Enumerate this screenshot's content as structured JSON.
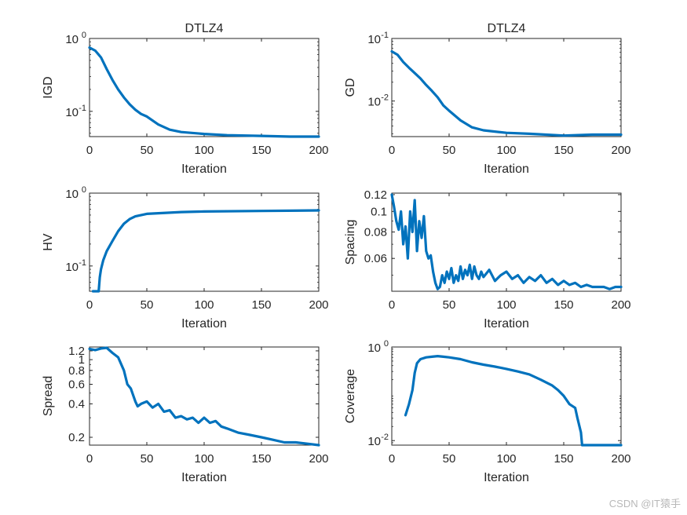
{
  "figure": {
    "line_color": "#0072BD",
    "axis_color": "#262626",
    "background": "#ffffff"
  },
  "watermark": "CSDN @IT猿手",
  "chart_data": [
    {
      "id": "igd",
      "type": "line",
      "title": "DTLZ4",
      "xlabel": "Iteration",
      "ylabel": "IGD",
      "yscale": "log",
      "xlim": [
        0,
        200
      ],
      "ylim": [
        0.045,
        1
      ],
      "xticks": [
        0,
        50,
        100,
        150,
        200
      ],
      "yticks": [
        {
          "v": 1,
          "base": "10",
          "exp": "0"
        },
        {
          "v": 0.1,
          "base": "10",
          "exp": "-1"
        }
      ],
      "series": [
        {
          "name": "IGD",
          "x": [
            0,
            5,
            10,
            15,
            20,
            25,
            30,
            35,
            40,
            45,
            50,
            60,
            70,
            80,
            100,
            120,
            150,
            175,
            200
          ],
          "y": [
            0.75,
            0.68,
            0.55,
            0.38,
            0.27,
            0.2,
            0.155,
            0.125,
            0.105,
            0.092,
            0.085,
            0.066,
            0.056,
            0.052,
            0.049,
            0.047,
            0.046,
            0.045,
            0.045
          ]
        }
      ]
    },
    {
      "id": "gd",
      "type": "line",
      "title": "DTLZ4",
      "xlabel": "Iteration",
      "ylabel": "GD",
      "yscale": "log",
      "xlim": [
        0,
        200
      ],
      "ylim": [
        0.0027,
        0.1
      ],
      "xticks": [
        0,
        50,
        100,
        150,
        200
      ],
      "yticks": [
        {
          "v": 0.1,
          "base": "10",
          "exp": "-1"
        },
        {
          "v": 0.01,
          "base": "10",
          "exp": "-2"
        }
      ],
      "series": [
        {
          "name": "GD",
          "x": [
            0,
            5,
            10,
            15,
            20,
            25,
            30,
            35,
            40,
            45,
            50,
            60,
            70,
            80,
            100,
            120,
            150,
            175,
            200
          ],
          "y": [
            0.062,
            0.055,
            0.042,
            0.034,
            0.028,
            0.023,
            0.018,
            0.0145,
            0.0115,
            0.0085,
            0.007,
            0.0049,
            0.0038,
            0.0034,
            0.0031,
            0.003,
            0.0028,
            0.0029,
            0.0029
          ]
        }
      ]
    },
    {
      "id": "hv",
      "type": "line",
      "title": "",
      "xlabel": "Iteration",
      "ylabel": "HV",
      "yscale": "log",
      "xlim": [
        0,
        200
      ],
      "ylim": [
        0.045,
        1
      ],
      "xticks": [
        0,
        50,
        100,
        150,
        200
      ],
      "yticks": [
        {
          "v": 1,
          "base": "10",
          "exp": "0"
        },
        {
          "v": 0.1,
          "base": "10",
          "exp": "-1"
        }
      ],
      "series": [
        {
          "name": "HV",
          "x": [
            3,
            8,
            9,
            10,
            12,
            15,
            20,
            25,
            30,
            35,
            40,
            50,
            60,
            80,
            100,
            150,
            200
          ],
          "y": [
            0.045,
            0.045,
            0.07,
            0.09,
            0.12,
            0.16,
            0.22,
            0.3,
            0.38,
            0.44,
            0.48,
            0.52,
            0.53,
            0.55,
            0.56,
            0.57,
            0.58
          ]
        }
      ]
    },
    {
      "id": "spacing",
      "type": "line",
      "title": "",
      "xlabel": "Iteration",
      "ylabel": "Spacing",
      "yscale": "log",
      "xlim": [
        0,
        200
      ],
      "ylim": [
        0.042,
        0.122
      ],
      "xticks": [
        0,
        50,
        100,
        150,
        200
      ],
      "yticks": [
        {
          "v": 0.12,
          "label": "0.12"
        },
        {
          "v": 0.1,
          "label": "0.1"
        },
        {
          "v": 0.08,
          "label": "0.08"
        },
        {
          "v": 0.06,
          "label": "0.06"
        }
      ],
      "series": [
        {
          "name": "Spacing",
          "x": [
            0,
            2,
            4,
            6,
            8,
            10,
            12,
            14,
            16,
            18,
            20,
            22,
            24,
            26,
            28,
            30,
            32,
            34,
            36,
            38,
            40,
            42,
            44,
            46,
            48,
            50,
            52,
            54,
            56,
            58,
            60,
            62,
            64,
            66,
            68,
            70,
            72,
            74,
            76,
            78,
            80,
            85,
            90,
            95,
            100,
            105,
            110,
            115,
            120,
            125,
            130,
            135,
            140,
            145,
            150,
            155,
            160,
            165,
            170,
            175,
            180,
            185,
            190,
            195,
            200
          ],
          "y": [
            0.12,
            0.105,
            0.09,
            0.082,
            0.1,
            0.07,
            0.085,
            0.06,
            0.1,
            0.08,
            0.113,
            0.065,
            0.09,
            0.075,
            0.095,
            0.065,
            0.06,
            0.062,
            0.052,
            0.046,
            0.043,
            0.044,
            0.05,
            0.046,
            0.052,
            0.048,
            0.054,
            0.046,
            0.05,
            0.047,
            0.055,
            0.048,
            0.053,
            0.05,
            0.056,
            0.048,
            0.055,
            0.05,
            0.048,
            0.052,
            0.049,
            0.053,
            0.047,
            0.05,
            0.052,
            0.048,
            0.05,
            0.046,
            0.049,
            0.047,
            0.05,
            0.046,
            0.048,
            0.045,
            0.047,
            0.045,
            0.046,
            0.044,
            0.045,
            0.044,
            0.044,
            0.044,
            0.043,
            0.044,
            0.044
          ]
        }
      ]
    },
    {
      "id": "spread",
      "type": "line",
      "title": "",
      "xlabel": "Iteration",
      "ylabel": "Spread",
      "yscale": "log",
      "xlim": [
        0,
        200
      ],
      "ylim": [
        0.17,
        1.3
      ],
      "xticks": [
        0,
        50,
        100,
        150,
        200
      ],
      "yticks": [
        {
          "v": 1.2,
          "label": "1.2"
        },
        {
          "v": 1,
          "label": "1"
        },
        {
          "v": 0.8,
          "label": "0.8"
        },
        {
          "v": 0.6,
          "label": "0.6"
        },
        {
          "v": 0.4,
          "label": "0.4"
        },
        {
          "v": 0.2,
          "label": "0.2"
        }
      ],
      "series": [
        {
          "name": "Spread",
          "x": [
            0,
            5,
            10,
            15,
            20,
            25,
            30,
            33,
            36,
            40,
            42,
            45,
            50,
            55,
            60,
            65,
            70,
            75,
            80,
            85,
            90,
            95,
            100,
            105,
            110,
            115,
            120,
            130,
            140,
            150,
            160,
            170,
            180,
            190,
            200
          ],
          "y": [
            1.25,
            1.22,
            1.26,
            1.28,
            1.15,
            1.05,
            0.8,
            0.6,
            0.55,
            0.42,
            0.38,
            0.4,
            0.42,
            0.37,
            0.4,
            0.34,
            0.35,
            0.3,
            0.31,
            0.29,
            0.3,
            0.27,
            0.3,
            0.27,
            0.28,
            0.25,
            0.24,
            0.22,
            0.21,
            0.2,
            0.19,
            0.18,
            0.18,
            0.175,
            0.17
          ]
        }
      ]
    },
    {
      "id": "coverage",
      "type": "line",
      "title": "",
      "xlabel": "Iteration",
      "ylabel": "Coverage",
      "yscale": "log",
      "xlim": [
        0,
        200
      ],
      "ylim": [
        0.008,
        1
      ],
      "xticks": [
        0,
        50,
        100,
        150,
        200
      ],
      "yticks": [
        {
          "v": 1,
          "base": "10",
          "exp": "0"
        },
        {
          "v": 0.01,
          "base": "10",
          "exp": "-2"
        }
      ],
      "series": [
        {
          "name": "Coverage",
          "x": [
            12,
            15,
            18,
            20,
            22,
            25,
            30,
            35,
            40,
            45,
            50,
            60,
            70,
            80,
            90,
            100,
            110,
            120,
            130,
            140,
            145,
            150,
            155,
            160,
            162,
            165,
            166,
            170,
            180,
            200
          ],
          "y": [
            0.035,
            0.06,
            0.12,
            0.28,
            0.45,
            0.55,
            0.6,
            0.62,
            0.64,
            0.62,
            0.6,
            0.55,
            0.47,
            0.42,
            0.38,
            0.34,
            0.3,
            0.26,
            0.2,
            0.15,
            0.12,
            0.09,
            0.06,
            0.05,
            0.03,
            0.015,
            0.008,
            0.008,
            0.008,
            0.008
          ]
        }
      ]
    }
  ]
}
